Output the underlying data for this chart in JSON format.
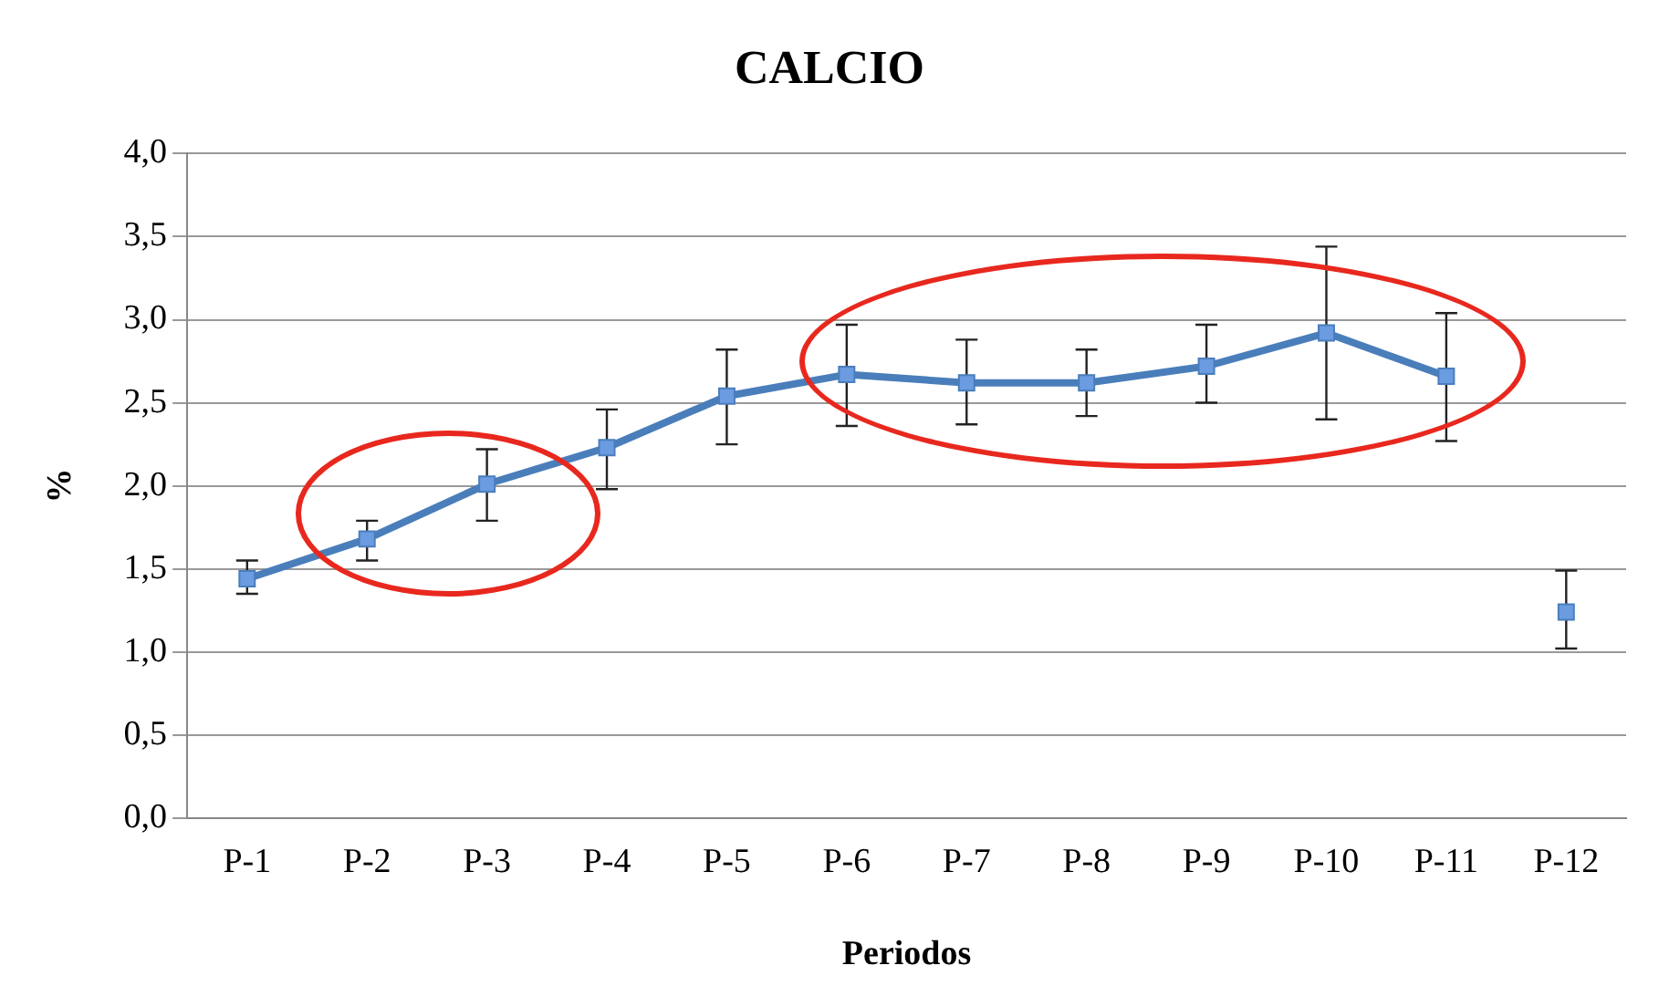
{
  "chart_data": {
    "type": "line",
    "title": "CALCIO",
    "xlabel": "Periodos",
    "ylabel": "%",
    "categories": [
      "P-1",
      "P-2",
      "P-3",
      "P-4",
      "P-5",
      "P-6",
      "P-7",
      "P-8",
      "P-9",
      "P-10",
      "P-11",
      "P-12"
    ],
    "series": [
      {
        "type": "line",
        "color": "#4a7ebb",
        "values": [
          1.44,
          1.68,
          2.01,
          2.23,
          2.54,
          2.67,
          2.62,
          2.62,
          2.72,
          2.92,
          2.66,
          null
        ],
        "errors": [
          [
            1.35,
            1.55
          ],
          [
            1.55,
            1.79
          ],
          [
            1.79,
            2.22
          ],
          [
            1.98,
            2.46
          ],
          [
            2.25,
            2.82
          ],
          [
            2.36,
            2.97
          ],
          [
            2.37,
            2.88
          ],
          [
            2.42,
            2.82
          ],
          [
            2.5,
            2.97
          ],
          [
            2.4,
            3.44
          ],
          [
            2.27,
            3.04
          ],
          null
        ]
      },
      {
        "type": "scatter",
        "color": "#4a7ebb",
        "values": [
          null,
          null,
          null,
          null,
          null,
          null,
          null,
          null,
          null,
          null,
          null,
          1.24
        ],
        "errors": [
          null,
          null,
          null,
          null,
          null,
          null,
          null,
          null,
          null,
          null,
          null,
          [
            1.02,
            1.49
          ]
        ]
      }
    ],
    "ylim": [
      0,
      4
    ],
    "yticks": [
      {
        "value": 0,
        "label": "0,0"
      },
      {
        "value": 0.5,
        "label": "0,5"
      },
      {
        "value": 1,
        "label": "1,0"
      },
      {
        "value": 1.5,
        "label": "1,5"
      },
      {
        "value": 2,
        "label": "2,0"
      },
      {
        "value": 2.5,
        "label": "2,5"
      },
      {
        "value": 3,
        "label": "3,0"
      },
      {
        "value": 3.5,
        "label": "3,5"
      },
      {
        "value": 4,
        "label": "4,0"
      }
    ],
    "grid": "y",
    "legend": false,
    "marker": "square",
    "line_style": "solid"
  }
}
